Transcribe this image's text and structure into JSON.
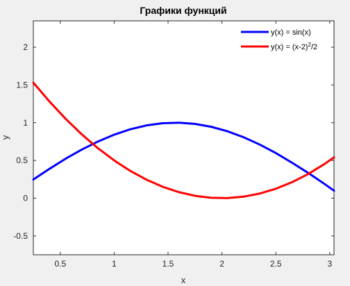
{
  "chart_data": {
    "type": "line",
    "title": "Графики функций",
    "xlabel": "x",
    "ylabel": "y",
    "xlim": [
      0.25,
      3.04
    ],
    "ylim": [
      -0.75,
      2.35
    ],
    "xticks": [
      0.5,
      1,
      1.5,
      2,
      2.5,
      3
    ],
    "xtick_labels": [
      "0.5",
      "1",
      "1.5",
      "2",
      "2.5",
      "3"
    ],
    "yticks": [
      -0.5,
      0,
      0.5,
      1,
      1.5,
      2
    ],
    "ytick_labels": [
      "-0.5",
      "0",
      "0.5",
      "1",
      "1.5",
      "2"
    ],
    "grid": false,
    "legend_position": "top-right",
    "x": [
      0.25,
      0.4,
      0.55,
      0.7,
      0.85,
      1.0,
      1.15,
      1.3,
      1.45,
      1.6,
      1.75,
      1.9,
      2.05,
      2.2,
      2.35,
      2.5,
      2.65,
      2.8,
      2.95,
      3.04
    ],
    "series": [
      {
        "name": "y(x) = sin(x)",
        "legend_main": "y(x) = sin(x)",
        "legend_sup": "",
        "legend_tail": "",
        "color": "#0000ff",
        "values": [
          0.247,
          0.389,
          0.523,
          0.644,
          0.751,
          0.841,
          0.913,
          0.964,
          0.993,
          1.0,
          0.984,
          0.946,
          0.887,
          0.808,
          0.711,
          0.598,
          0.47,
          0.335,
          0.19,
          0.099
        ]
      },
      {
        "name": "y(x) = (x-2)2/2",
        "legend_main": "y(x) = (x-2)",
        "legend_sup": "2",
        "legend_tail": "/2",
        "color": "#ff0000",
        "values": [
          1.531,
          1.28,
          1.051,
          0.845,
          0.661,
          0.5,
          0.361,
          0.245,
          0.151,
          0.08,
          0.031,
          0.005,
          0.001,
          0.02,
          0.061,
          0.125,
          0.211,
          0.32,
          0.451,
          0.541
        ]
      }
    ]
  }
}
